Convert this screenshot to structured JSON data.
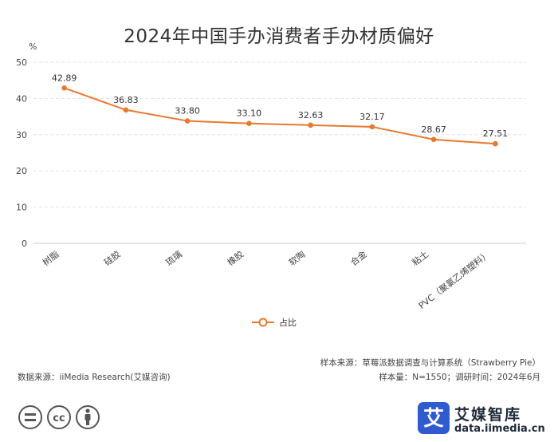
{
  "chart_data": {
    "type": "line",
    "title": "2024年中国手办消费者手办材质偏好",
    "ylabel": "%",
    "ylim": [
      0,
      50
    ],
    "yticks": [
      0,
      10,
      20,
      30,
      40,
      50
    ],
    "grid": true,
    "categories": [
      "树脂",
      "硅胶",
      "琉璃",
      "橡胶",
      "软陶",
      "合金",
      "粘土",
      "PVC（聚氯乙烯塑料）"
    ],
    "series": [
      {
        "name": "占比",
        "values": [
          42.89,
          36.83,
          33.8,
          33.1,
          32.63,
          32.17,
          28.67,
          27.51
        ],
        "color": "#e8792f"
      }
    ],
    "data_labels": [
      "42.89",
      "36.83",
      "33.80",
      "33.10",
      "32.63",
      "32.17",
      "28.67",
      "27.51"
    ],
    "legend_position": "bottom-center"
  },
  "footer": {
    "sample_source": "样本来源：草莓派数据调查与计算系统（Strawberry Pie）",
    "sample_size": "样本量：N=1550；调研时间：2024年6月",
    "data_source": "数据来源：iiMedia Research(艾媒咨询)"
  },
  "brand": {
    "logo_char": "艾",
    "name": "艾媒智库",
    "url": "data.iimedia.cn"
  }
}
